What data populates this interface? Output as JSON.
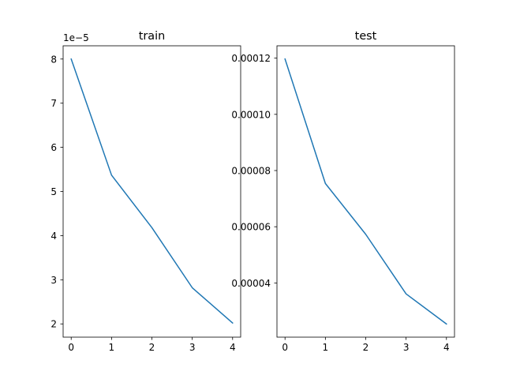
{
  "chart_data": [
    {
      "type": "line",
      "title": "train",
      "xlabel": "",
      "ylabel": "",
      "x": [
        0,
        1,
        2,
        3,
        4
      ],
      "series": [
        {
          "values": [
            8e-05,
            5.37e-05,
            4.18e-05,
            2.82e-05,
            2.02e-05
          ]
        }
      ],
      "xlim": [
        -0.2,
        4.2
      ],
      "ylim": [
        1.7e-05,
        8.3e-05
      ],
      "xticks": [
        0,
        1,
        2,
        3,
        4
      ],
      "xtick_labels": [
        "0",
        "1",
        "2",
        "3",
        "4"
      ],
      "yticks": [
        2e-05,
        3e-05,
        4e-05,
        5e-05,
        6e-05,
        7e-05,
        8e-05
      ],
      "ytick_labels": [
        "2",
        "3",
        "4",
        "5",
        "6",
        "7",
        "8"
      ],
      "offset_text": "1e−5",
      "grid": false,
      "color": "#1f77b4"
    },
    {
      "type": "line",
      "title": "test",
      "xlabel": "",
      "ylabel": "",
      "x": [
        0,
        1,
        2,
        3,
        4
      ],
      "series": [
        {
          "values": [
            0.0001197,
            7.54e-05,
            5.73e-05,
            3.61e-05,
            2.54e-05
          ]
        }
      ],
      "xlim": [
        -0.2,
        4.2
      ],
      "ylim": [
        2.07e-05,
        0.0001244
      ],
      "xticks": [
        0,
        1,
        2,
        3,
        4
      ],
      "xtick_labels": [
        "0",
        "1",
        "2",
        "3",
        "4"
      ],
      "yticks": [
        4e-05,
        6e-05,
        8e-05,
        0.0001,
        0.00012
      ],
      "ytick_labels": [
        "0.00004",
        "0.00006",
        "0.00008",
        "0.00010",
        "0.00012"
      ],
      "offset_text": "",
      "grid": false,
      "color": "#1f77b4"
    }
  ]
}
